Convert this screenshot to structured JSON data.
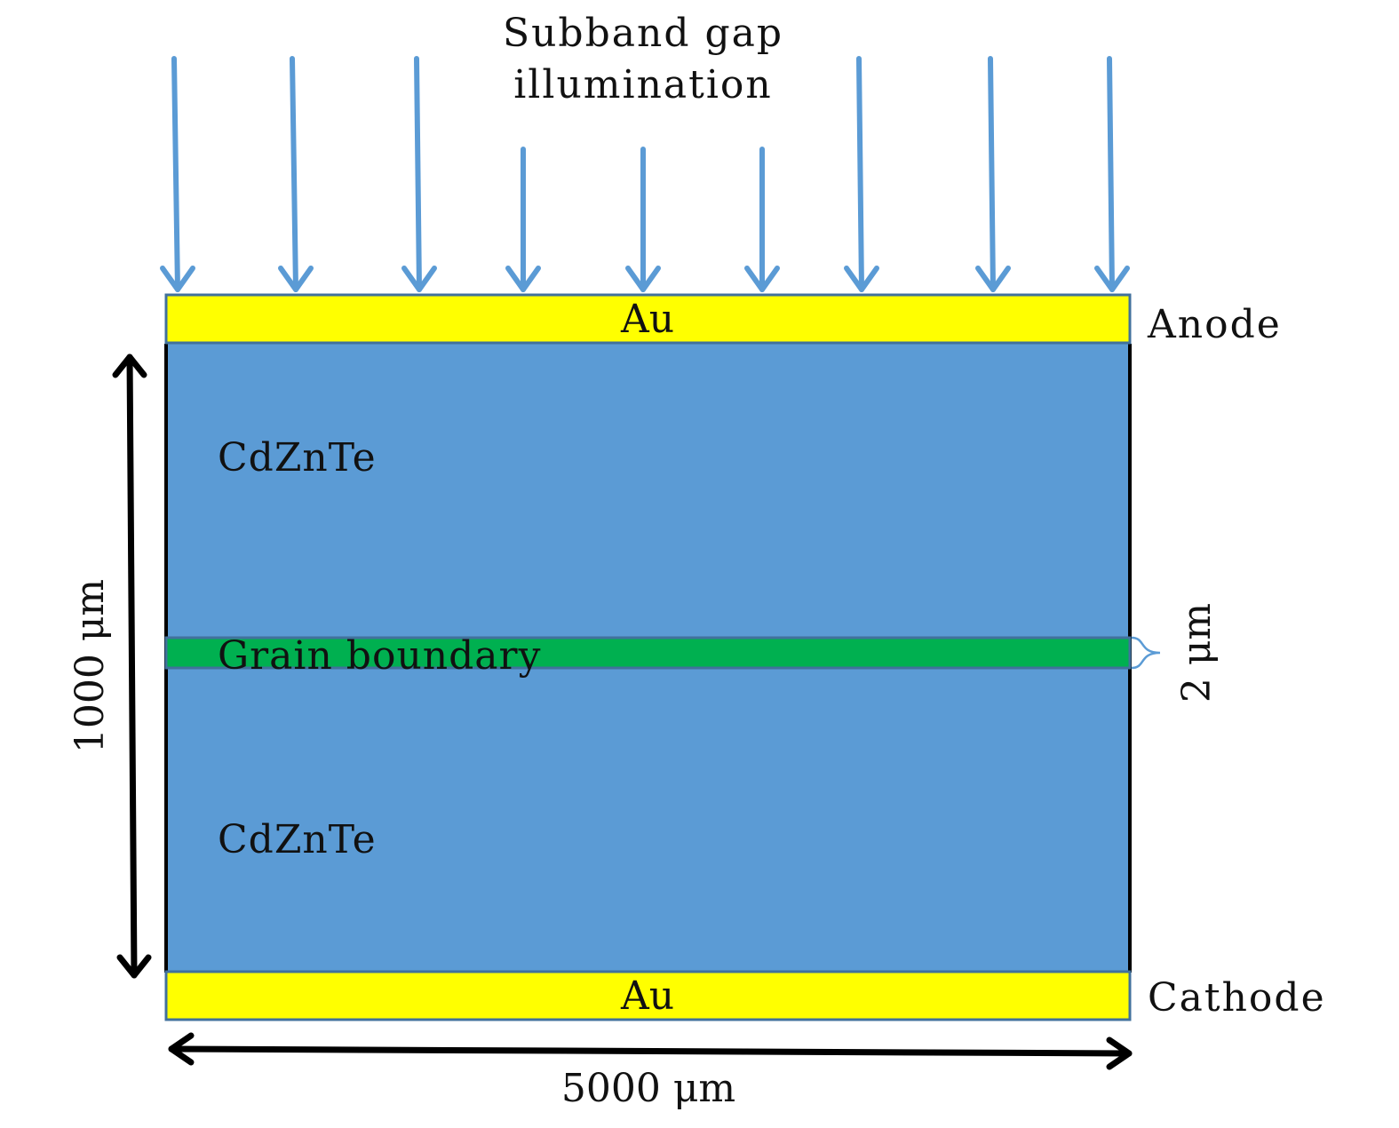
{
  "illumination": {
    "line1": "Subband gap",
    "line2": "illumination",
    "arrow_color": "#5B9BD5",
    "arrow_count": 9
  },
  "layers": {
    "top_electrode": {
      "label": "Au",
      "color": "#FFFF00"
    },
    "bottom_electrode": {
      "label": "Au",
      "color": "#FFFF00"
    },
    "crystal": {
      "upper_label": "CdZnTe",
      "lower_label": "CdZnTe",
      "color": "#5B9BD5"
    },
    "grain_boundary": {
      "label": "Grain boundary",
      "color": "#00B050"
    }
  },
  "terminals": {
    "anode": "Anode",
    "cathode": "Cathode"
  },
  "dimensions": {
    "thickness": "1000 μm",
    "width": "5000 μm",
    "boundary_thickness": "2 μm"
  },
  "outline_color": "#41719C"
}
